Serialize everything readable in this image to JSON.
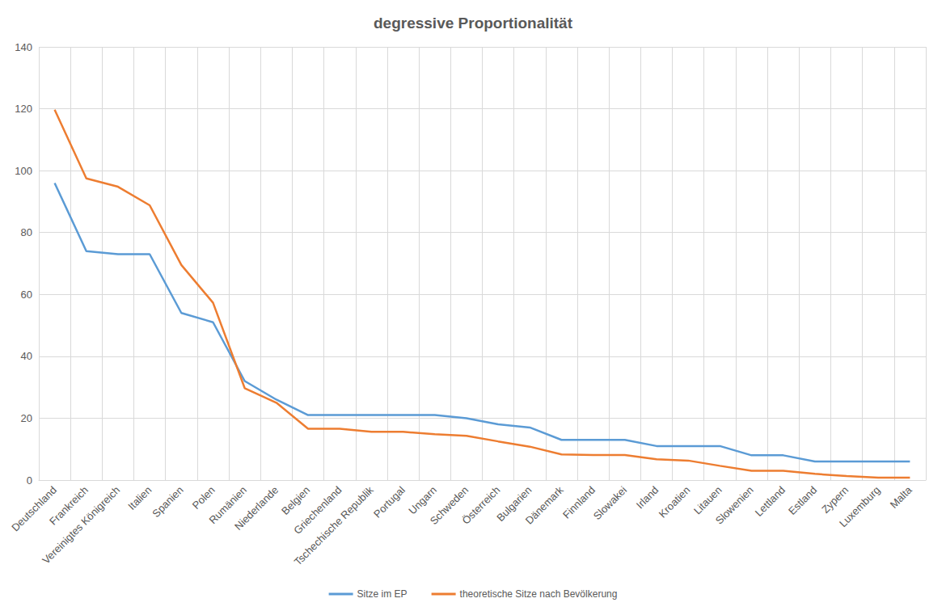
{
  "chart_data": {
    "type": "line",
    "title": "degressive Proportionalität",
    "categories": [
      "Deutschland",
      "Frankreich",
      "Vereinigtes Königreich",
      "Italien",
      "Spanien",
      "Polen",
      "Rumänien",
      "Niederlande",
      "Belgien",
      "Griechenland",
      "Tschechische Republik",
      "Portugal",
      "Ungarn",
      "Schweden",
      "Österreich",
      "Bulgarien",
      "Dänemark",
      "Finnland",
      "Slowakei",
      "Irland",
      "Kroatien",
      "Litauen",
      "Slowenien",
      "Lettland",
      "Estland",
      "Zypern",
      "Luxemburg",
      "Malta"
    ],
    "series": [
      {
        "name": "Sitze im EP",
        "color": "#5b9bd5",
        "values": [
          96,
          74,
          73,
          73,
          54,
          51,
          32,
          26,
          21,
          21,
          21,
          21,
          21,
          20,
          18,
          17,
          13,
          13,
          13,
          11,
          11,
          11,
          8,
          8,
          6,
          6,
          6,
          6
        ]
      },
      {
        "name": "theoretische Sitze nach Bevölkerung",
        "color": "#ed7d31",
        "values": [
          119.7,
          97.5,
          94.8,
          88.8,
          69.5,
          57.3,
          29.7,
          25.0,
          16.6,
          16.6,
          15.6,
          15.6,
          14.8,
          14.3,
          12.5,
          10.8,
          8.3,
          8.1,
          8.1,
          6.7,
          6.3,
          4.6,
          3.0,
          3.0,
          2.0,
          1.3,
          0.8,
          0.8
        ]
      }
    ],
    "ylim": [
      0,
      140
    ],
    "yticks": [
      0,
      20,
      40,
      60,
      80,
      100,
      120,
      140
    ],
    "grid": true,
    "legend": "bottom"
  }
}
